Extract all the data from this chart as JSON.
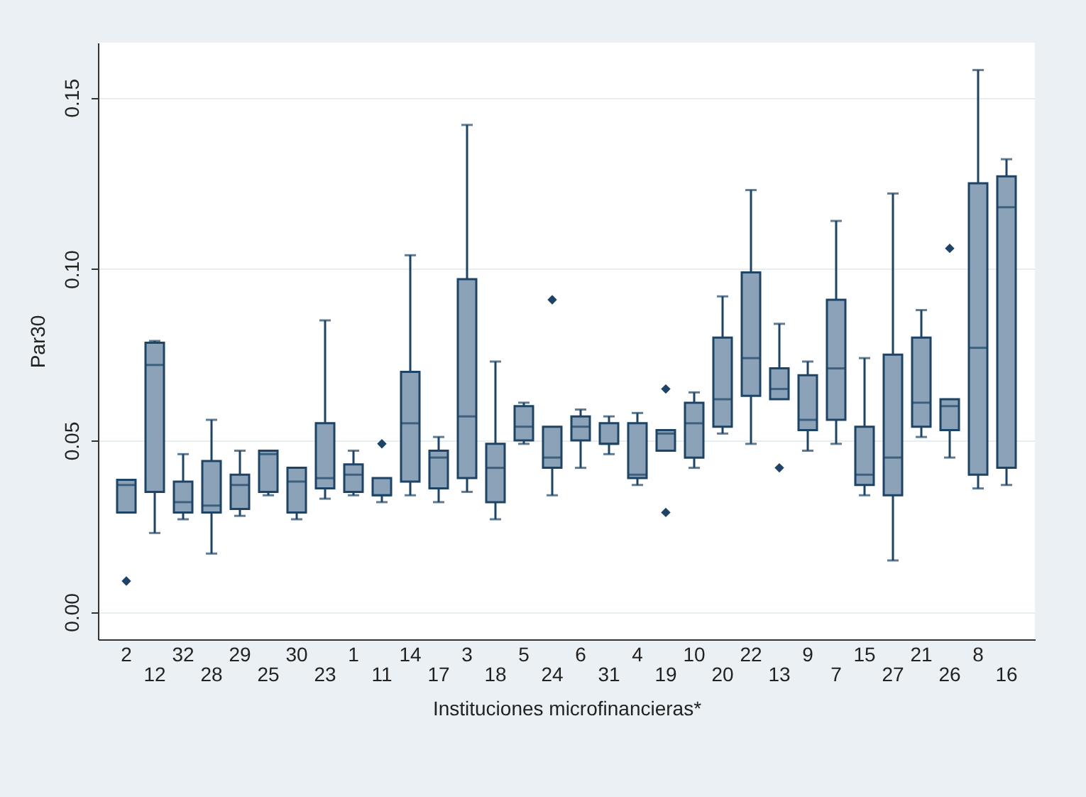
{
  "chart_data": {
    "type": "box",
    "xlabel": "Instituciones microfinancieras*",
    "ylabel": "Par30",
    "categories": [
      "2",
      "12",
      "32",
      "28",
      "29",
      "25",
      "30",
      "23",
      "1",
      "11",
      "14",
      "17",
      "3",
      "18",
      "5",
      "24",
      "6",
      "31",
      "4",
      "19",
      "10",
      "20",
      "22",
      "13",
      "9",
      "7",
      "15",
      "27",
      "21",
      "26",
      "8",
      "16"
    ],
    "ylim": [
      -0.008,
      0.166
    ],
    "yticks": [
      {
        "value": 0,
        "label": "0.00"
      },
      {
        "value": 0.05,
        "label": "0.05"
      },
      {
        "value": 0.1,
        "label": "0.10"
      },
      {
        "value": 0.15,
        "label": "0.15"
      }
    ],
    "grid": "y",
    "series": [
      {
        "color": "#8ca2b8",
        "boxes": [
          {
            "low": 0.029,
            "q1": 0.029,
            "median": 0.037,
            "q3": 0.0385,
            "high": 0.0385,
            "outliers": [
              0.009
            ]
          },
          {
            "low": 0.023,
            "q1": 0.035,
            "median": 0.072,
            "q3": 0.0785,
            "high": 0.079
          },
          {
            "low": 0.027,
            "q1": 0.029,
            "median": 0.032,
            "q3": 0.038,
            "high": 0.046
          },
          {
            "low": 0.017,
            "q1": 0.029,
            "median": 0.031,
            "q3": 0.044,
            "high": 0.056
          },
          {
            "low": 0.028,
            "q1": 0.03,
            "median": 0.037,
            "q3": 0.04,
            "high": 0.047
          },
          {
            "low": 0.034,
            "q1": 0.035,
            "median": 0.046,
            "q3": 0.047,
            "high": 0.047
          },
          {
            "low": 0.027,
            "q1": 0.029,
            "median": 0.038,
            "q3": 0.042,
            "high": 0.042
          },
          {
            "low": 0.033,
            "q1": 0.036,
            "median": 0.039,
            "q3": 0.055,
            "high": 0.085
          },
          {
            "low": 0.034,
            "q1": 0.035,
            "median": 0.04,
            "q3": 0.043,
            "high": 0.047
          },
          {
            "low": 0.032,
            "q1": 0.034,
            "median": 0.034,
            "q3": 0.039,
            "high": 0.039,
            "outliers": [
              0.049
            ]
          },
          {
            "low": 0.034,
            "q1": 0.038,
            "median": 0.055,
            "q3": 0.07,
            "high": 0.104
          },
          {
            "low": 0.032,
            "q1": 0.036,
            "median": 0.045,
            "q3": 0.047,
            "high": 0.051
          },
          {
            "low": 0.035,
            "q1": 0.039,
            "median": 0.057,
            "q3": 0.097,
            "high": 0.142
          },
          {
            "low": 0.027,
            "q1": 0.032,
            "median": 0.042,
            "q3": 0.049,
            "high": 0.073
          },
          {
            "low": 0.049,
            "q1": 0.05,
            "median": 0.054,
            "q3": 0.06,
            "high": 0.061
          },
          {
            "low": 0.034,
            "q1": 0.042,
            "median": 0.045,
            "q3": 0.054,
            "high": 0.054,
            "outliers": [
              0.091
            ]
          },
          {
            "low": 0.042,
            "q1": 0.05,
            "median": 0.054,
            "q3": 0.057,
            "high": 0.059
          },
          {
            "low": 0.046,
            "q1": 0.049,
            "median": 0.049,
            "q3": 0.055,
            "high": 0.057
          },
          {
            "low": 0.037,
            "q1": 0.039,
            "median": 0.04,
            "q3": 0.055,
            "high": 0.058
          },
          {
            "low": 0.047,
            "q1": 0.047,
            "median": 0.052,
            "q3": 0.053,
            "high": 0.053,
            "outliers": [
              0.065,
              0.029
            ]
          },
          {
            "low": 0.042,
            "q1": 0.045,
            "median": 0.055,
            "q3": 0.061,
            "high": 0.064
          },
          {
            "low": 0.052,
            "q1": 0.054,
            "median": 0.062,
            "q3": 0.08,
            "high": 0.092
          },
          {
            "low": 0.049,
            "q1": 0.063,
            "median": 0.074,
            "q3": 0.099,
            "high": 0.123
          },
          {
            "low": 0.062,
            "q1": 0.062,
            "median": 0.065,
            "q3": 0.071,
            "high": 0.084,
            "outliers": [
              0.042
            ]
          },
          {
            "low": 0.047,
            "q1": 0.053,
            "median": 0.056,
            "q3": 0.069,
            "high": 0.073
          },
          {
            "low": 0.049,
            "q1": 0.056,
            "median": 0.071,
            "q3": 0.091,
            "high": 0.114
          },
          {
            "low": 0.034,
            "q1": 0.037,
            "median": 0.04,
            "q3": 0.054,
            "high": 0.074
          },
          {
            "low": 0.015,
            "q1": 0.034,
            "median": 0.045,
            "q3": 0.075,
            "high": 0.122
          },
          {
            "low": 0.051,
            "q1": 0.054,
            "median": 0.061,
            "q3": 0.08,
            "high": 0.088
          },
          {
            "low": 0.045,
            "q1": 0.053,
            "median": 0.06,
            "q3": 0.062,
            "high": 0.062,
            "outliers": [
              0.106
            ]
          },
          {
            "low": 0.036,
            "q1": 0.04,
            "median": 0.077,
            "q3": 0.125,
            "high": 0.158
          },
          {
            "low": 0.037,
            "q1": 0.042,
            "median": 0.118,
            "q3": 0.127,
            "high": 0.132
          }
        ]
      }
    ]
  }
}
